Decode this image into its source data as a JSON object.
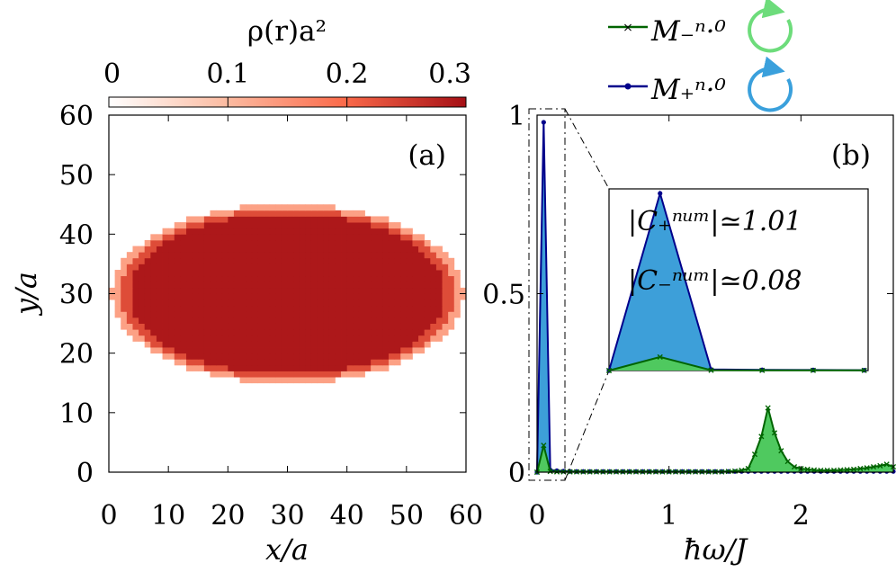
{
  "colorbar": {
    "title": "ρ(r)a²",
    "ticks": [
      "0",
      "0.1",
      "0.2",
      "0.3"
    ],
    "range": [
      0,
      0.3
    ],
    "colors": [
      "#ffffff",
      "#fcbba1",
      "#fb6a4a",
      "#a50f15"
    ]
  },
  "legend": {
    "items": [
      {
        "label": "M₋ⁿ·⁰",
        "color": "#006400",
        "marker": "x",
        "icon": "counterclockwise-circle-arrow-icon",
        "icon_color": "#6ddc7b"
      },
      {
        "label": "M₊ⁿ·⁰",
        "color": "#00008b",
        "marker": "dot",
        "icon": "clockwise-circle-arrow-icon",
        "icon_color": "#3aa0dc"
      }
    ]
  },
  "chart_data": [
    {
      "type": "heatmap",
      "panel_label": "(a)",
      "xlabel": "x/a",
      "ylabel": "y/a",
      "xlim": [
        0,
        60
      ],
      "ylim": [
        0,
        60
      ],
      "xticks": [
        "0",
        "10",
        "20",
        "30",
        "40",
        "50",
        "60"
      ],
      "yticks": [
        "0",
        "10",
        "20",
        "30",
        "40",
        "50",
        "60"
      ],
      "grid": false,
      "density_inside": 0.29,
      "ellipse": {
        "center": [
          29.5,
          29.5
        ],
        "semi_axis_x": 28.5,
        "semi_axis_y": 14.5
      }
    },
    {
      "type": "area",
      "panel_label": "(b)",
      "xlabel": "ħω/J",
      "ylabel": "",
      "xlim": [
        0,
        2.7
      ],
      "ylim": [
        0,
        1.0
      ],
      "xticks": [
        "0",
        "1",
        "2"
      ],
      "yticks": [
        "0",
        "0.5",
        "1"
      ],
      "grid": false,
      "series": [
        {
          "name": "M₊ⁿ·⁰",
          "color": "#00008b",
          "fill": "#3d9fd9",
          "x": [
            0.0,
            0.05,
            0.1,
            0.15,
            0.2,
            0.25,
            0.3,
            0.35,
            0.4,
            0.45,
            0.5,
            0.55,
            0.6,
            0.65,
            0.7,
            0.75,
            0.8,
            0.85,
            0.9,
            0.95,
            1.0,
            1.05,
            1.1,
            1.15,
            1.2,
            1.25,
            1.3,
            1.35,
            1.4,
            1.45,
            1.5,
            1.55,
            1.6,
            1.65,
            1.7,
            1.75,
            1.8,
            1.85,
            1.9,
            1.95,
            2.0,
            2.05,
            2.1,
            2.15,
            2.2,
            2.25,
            2.3,
            2.35,
            2.4,
            2.45,
            2.5,
            2.55,
            2.6,
            2.65,
            2.7
          ],
          "values": [
            0.0,
            0.98,
            0.006,
            0.004,
            0.003,
            0.002,
            0.002,
            0.002,
            0.002,
            0.002,
            0.002,
            0.002,
            0.002,
            0.002,
            0.002,
            0.002,
            0.002,
            0.002,
            0.002,
            0.002,
            0.002,
            0.002,
            0.002,
            0.002,
            0.002,
            0.002,
            0.002,
            0.002,
            0.002,
            0.002,
            0.002,
            0.002,
            0.002,
            0.002,
            0.002,
            0.002,
            0.002,
            0.002,
            0.002,
            0.002,
            0.002,
            0.002,
            0.002,
            0.002,
            0.002,
            0.002,
            0.002,
            0.002,
            0.002,
            0.002,
            0.002,
            0.002,
            0.002,
            0.002,
            0.002
          ]
        },
        {
          "name": "M₋ⁿ·⁰",
          "color": "#006400",
          "fill": "#4fc95f",
          "x": [
            0.0,
            0.05,
            0.1,
            0.15,
            0.2,
            0.25,
            0.3,
            0.35,
            0.4,
            0.45,
            0.5,
            0.55,
            0.6,
            0.65,
            0.7,
            0.75,
            0.8,
            0.85,
            0.9,
            0.95,
            1.0,
            1.05,
            1.1,
            1.15,
            1.2,
            1.25,
            1.3,
            1.35,
            1.4,
            1.45,
            1.5,
            1.55,
            1.6,
            1.65,
            1.7,
            1.75,
            1.8,
            1.85,
            1.9,
            1.95,
            2.0,
            2.05,
            2.1,
            2.15,
            2.2,
            2.25,
            2.3,
            2.35,
            2.4,
            2.45,
            2.5,
            2.55,
            2.6,
            2.65,
            2.7
          ],
          "values": [
            0.0,
            0.075,
            0.002,
            0.001,
            0.001,
            0.001,
            0.001,
            0.001,
            0.001,
            0.001,
            0.001,
            0.001,
            0.001,
            0.001,
            0.001,
            0.001,
            0.001,
            0.001,
            0.001,
            0.001,
            0.001,
            0.001,
            0.001,
            0.001,
            0.001,
            0.001,
            0.001,
            0.001,
            0.001,
            0.002,
            0.003,
            0.005,
            0.01,
            0.05,
            0.1,
            0.18,
            0.11,
            0.06,
            0.03,
            0.015,
            0.01,
            0.008,
            0.006,
            0.005,
            0.005,
            0.005,
            0.006,
            0.007,
            0.008,
            0.01,
            0.012,
            0.015,
            0.018,
            0.022,
            0.015
          ]
        }
      ],
      "inset": {
        "zoom_xlim": [
          0.0,
          0.25
        ],
        "annotations": [
          "|C₊ⁿᵘᵐ|≃1.01",
          "|C₋ⁿᵘᵐ|≃0.08"
        ]
      }
    }
  ]
}
